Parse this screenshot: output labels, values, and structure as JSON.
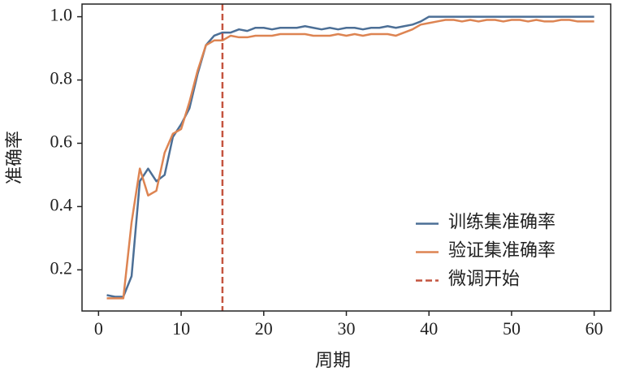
{
  "chart_data": {
    "type": "line",
    "x_label": "周期",
    "y_label": "准确率",
    "x": [
      1,
      2,
      3,
      4,
      5,
      6,
      7,
      8,
      9,
      10,
      11,
      12,
      13,
      14,
      15,
      16,
      17,
      18,
      19,
      20,
      21,
      22,
      23,
      24,
      25,
      26,
      27,
      28,
      29,
      30,
      31,
      32,
      33,
      34,
      35,
      36,
      37,
      38,
      39,
      40,
      41,
      42,
      43,
      44,
      45,
      46,
      47,
      48,
      49,
      50,
      51,
      52,
      53,
      54,
      55,
      56,
      57,
      58,
      59,
      60
    ],
    "series": [
      {
        "name": "训练集准确率",
        "color": "#4c6f96",
        "values": [
          0.12,
          0.115,
          0.115,
          0.18,
          0.48,
          0.52,
          0.48,
          0.5,
          0.62,
          0.66,
          0.71,
          0.82,
          0.91,
          0.94,
          0.95,
          0.95,
          0.96,
          0.955,
          0.965,
          0.965,
          0.96,
          0.965,
          0.965,
          0.965,
          0.97,
          0.965,
          0.96,
          0.965,
          0.96,
          0.965,
          0.965,
          0.96,
          0.965,
          0.965,
          0.97,
          0.965,
          0.97,
          0.975,
          0.985,
          1.0,
          1.0,
          1.0,
          1.0,
          1.0,
          1.0,
          1.0,
          1.0,
          1.0,
          1.0,
          1.0,
          1.0,
          1.0,
          1.0,
          1.0,
          1.0,
          1.0,
          1.0,
          1.0,
          1.0,
          1.0
        ]
      },
      {
        "name": "验证集准确率",
        "color": "#dd8452",
        "values": [
          0.11,
          0.11,
          0.11,
          0.35,
          0.52,
          0.435,
          0.45,
          0.57,
          0.63,
          0.645,
          0.73,
          0.83,
          0.91,
          0.925,
          0.925,
          0.94,
          0.935,
          0.935,
          0.94,
          0.94,
          0.94,
          0.945,
          0.945,
          0.945,
          0.945,
          0.94,
          0.94,
          0.94,
          0.945,
          0.94,
          0.945,
          0.94,
          0.945,
          0.945,
          0.945,
          0.94,
          0.95,
          0.96,
          0.975,
          0.98,
          0.985,
          0.99,
          0.99,
          0.985,
          0.99,
          0.985,
          0.99,
          0.99,
          0.985,
          0.99,
          0.99,
          0.985,
          0.99,
          0.985,
          0.985,
          0.99,
          0.99,
          0.985,
          0.985,
          0.985
        ]
      }
    ],
    "vlines": [
      {
        "name": "微调开始",
        "x": 15,
        "color": "#c4543f"
      }
    ],
    "xlim": [
      -2,
      62
    ],
    "ylim": [
      0.07,
      1.04
    ],
    "xticks": [
      0,
      10,
      20,
      30,
      40,
      50,
      60
    ],
    "yticks": [
      0.2,
      0.4,
      0.6,
      0.8,
      {
        "value": 1,
        "label": "1.0"
      }
    ],
    "legend": "lower right",
    "grid": false
  }
}
